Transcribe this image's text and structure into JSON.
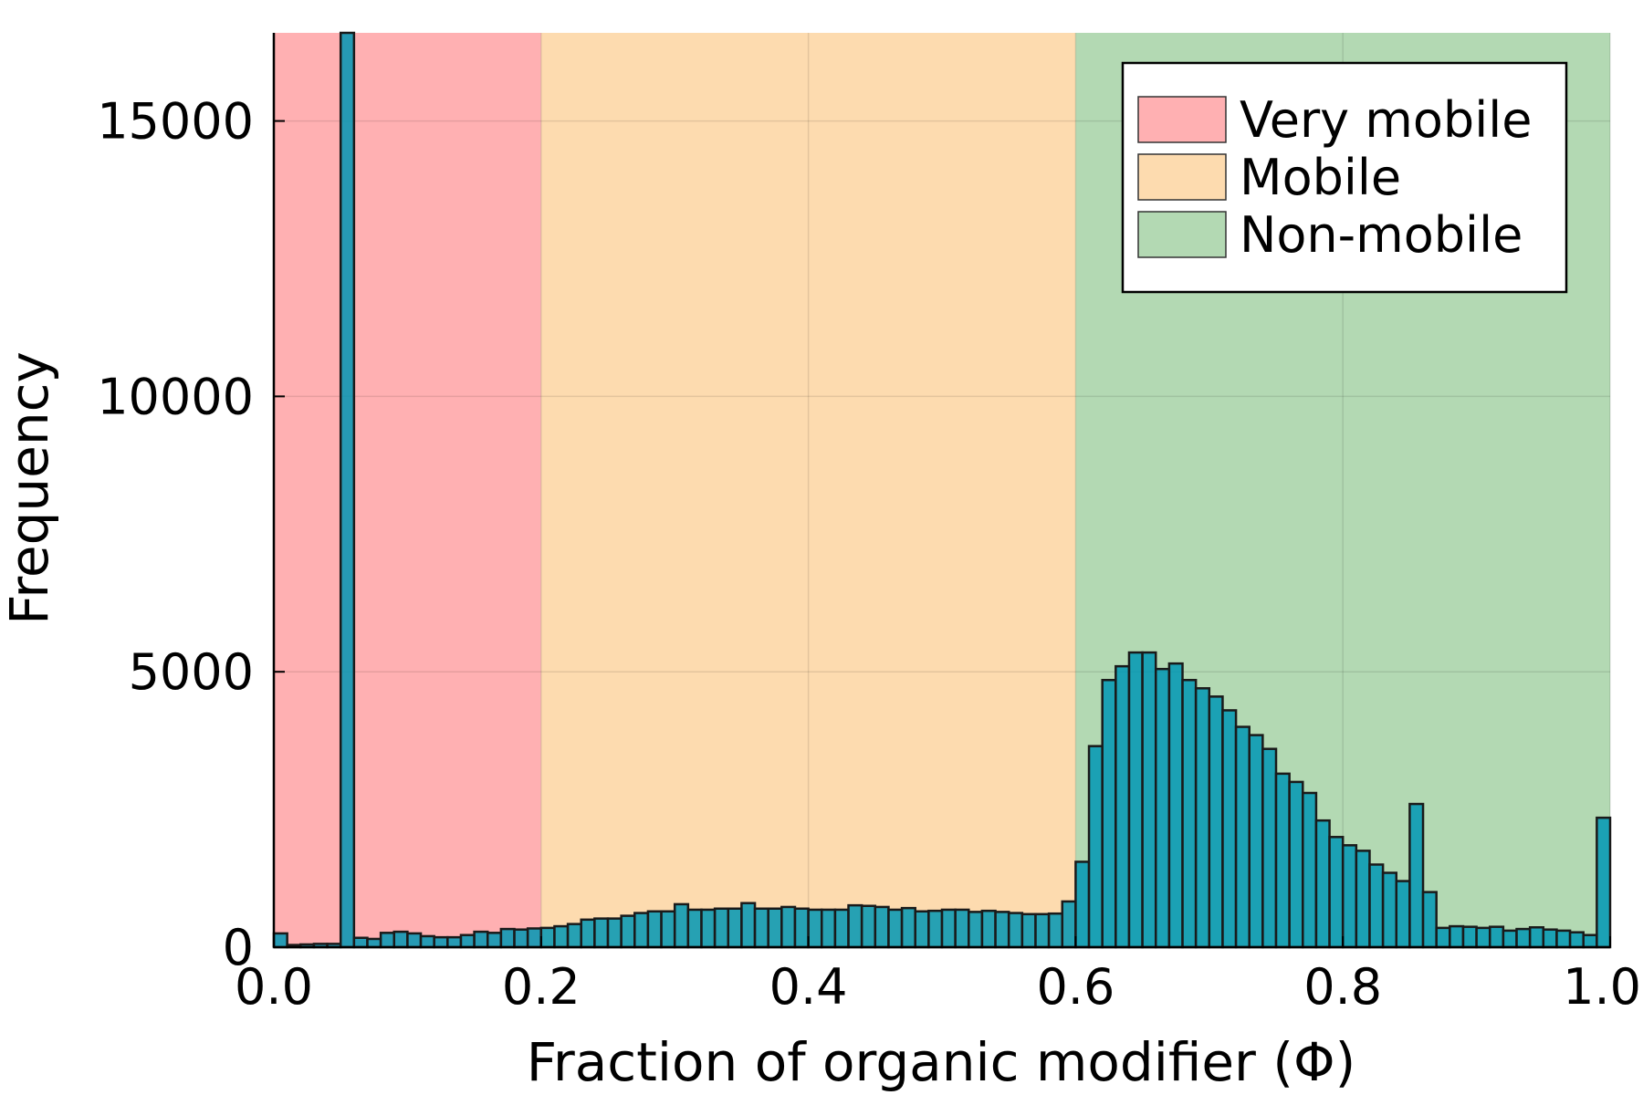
{
  "chart_data": {
    "type": "bar",
    "xlabel": "Fraction of organic modifier (Φ)",
    "ylabel": "Frequency",
    "xlim": [
      0,
      1
    ],
    "ylim": [
      0,
      16600
    ],
    "grid": true,
    "legend_position": "top-right",
    "x_ticks": [
      0.0,
      0.2,
      0.4,
      0.6,
      0.8,
      1.0
    ],
    "x_tick_labels": [
      "0.0",
      "0.2",
      "0.4",
      "0.6",
      "0.8",
      "1.0"
    ],
    "y_ticks": [
      0,
      5000,
      10000,
      15000
    ],
    "y_tick_labels": [
      "0",
      "5000",
      "10000",
      "15000"
    ],
    "regions": [
      {
        "label": "Very mobile",
        "from": 0.0,
        "to": 0.2,
        "color": "#ffb0b2"
      },
      {
        "label": "Mobile",
        "from": 0.2,
        "to": 0.6,
        "color": "#fddbaf"
      },
      {
        "label": "Non-mobile",
        "from": 0.6,
        "to": 1.0,
        "color": "#b3d9b3"
      }
    ],
    "bin_width": 0.01,
    "bin_starts": [
      0.0,
      0.01,
      0.02,
      0.03,
      0.04,
      0.05,
      0.06,
      0.07,
      0.08,
      0.09,
      0.1,
      0.11,
      0.12,
      0.13,
      0.14,
      0.15,
      0.16,
      0.17,
      0.18,
      0.19,
      0.2,
      0.21,
      0.22,
      0.23,
      0.24,
      0.25,
      0.26,
      0.27,
      0.28,
      0.29,
      0.3,
      0.31,
      0.32,
      0.33,
      0.34,
      0.35,
      0.36,
      0.37,
      0.38,
      0.39,
      0.4,
      0.41,
      0.42,
      0.43,
      0.44,
      0.45,
      0.46,
      0.47,
      0.48,
      0.49,
      0.5,
      0.51,
      0.52,
      0.53,
      0.54,
      0.55,
      0.56,
      0.57,
      0.58,
      0.59,
      0.6,
      0.61,
      0.62,
      0.63,
      0.64,
      0.65,
      0.66,
      0.67,
      0.68,
      0.69,
      0.7,
      0.71,
      0.72,
      0.73,
      0.74,
      0.75,
      0.76,
      0.77,
      0.78,
      0.79,
      0.8,
      0.81,
      0.82,
      0.83,
      0.84,
      0.85,
      0.86,
      0.87,
      0.88,
      0.89,
      0.9,
      0.91,
      0.92,
      0.93,
      0.94,
      0.95,
      0.96,
      0.97,
      0.98,
      0.99
    ],
    "frequencies": [
      250,
      40,
      50,
      60,
      60,
      16600,
      170,
      150,
      260,
      280,
      250,
      200,
      180,
      180,
      220,
      280,
      260,
      330,
      320,
      340,
      350,
      380,
      420,
      500,
      520,
      520,
      570,
      620,
      650,
      650,
      780,
      680,
      680,
      700,
      700,
      800,
      700,
      700,
      730,
      700,
      680,
      680,
      680,
      760,
      750,
      730,
      680,
      710,
      650,
      660,
      680,
      680,
      640,
      660,
      640,
      620,
      600,
      600,
      610,
      830,
      1550,
      3650,
      4850,
      5100,
      5350,
      5350,
      5050,
      5150,
      4850,
      4700,
      4550,
      4300,
      4000,
      3850,
      3600,
      3150,
      3000,
      2800,
      2300,
      2000,
      1850,
      1750,
      1500,
      1350,
      1200,
      2600,
      1000,
      350,
      380,
      370,
      350,
      370,
      300,
      330,
      360,
      320,
      300,
      270,
      220,
      2350
    ],
    "bar_color": "#0096b4",
    "bar_opacity": 0.85
  }
}
